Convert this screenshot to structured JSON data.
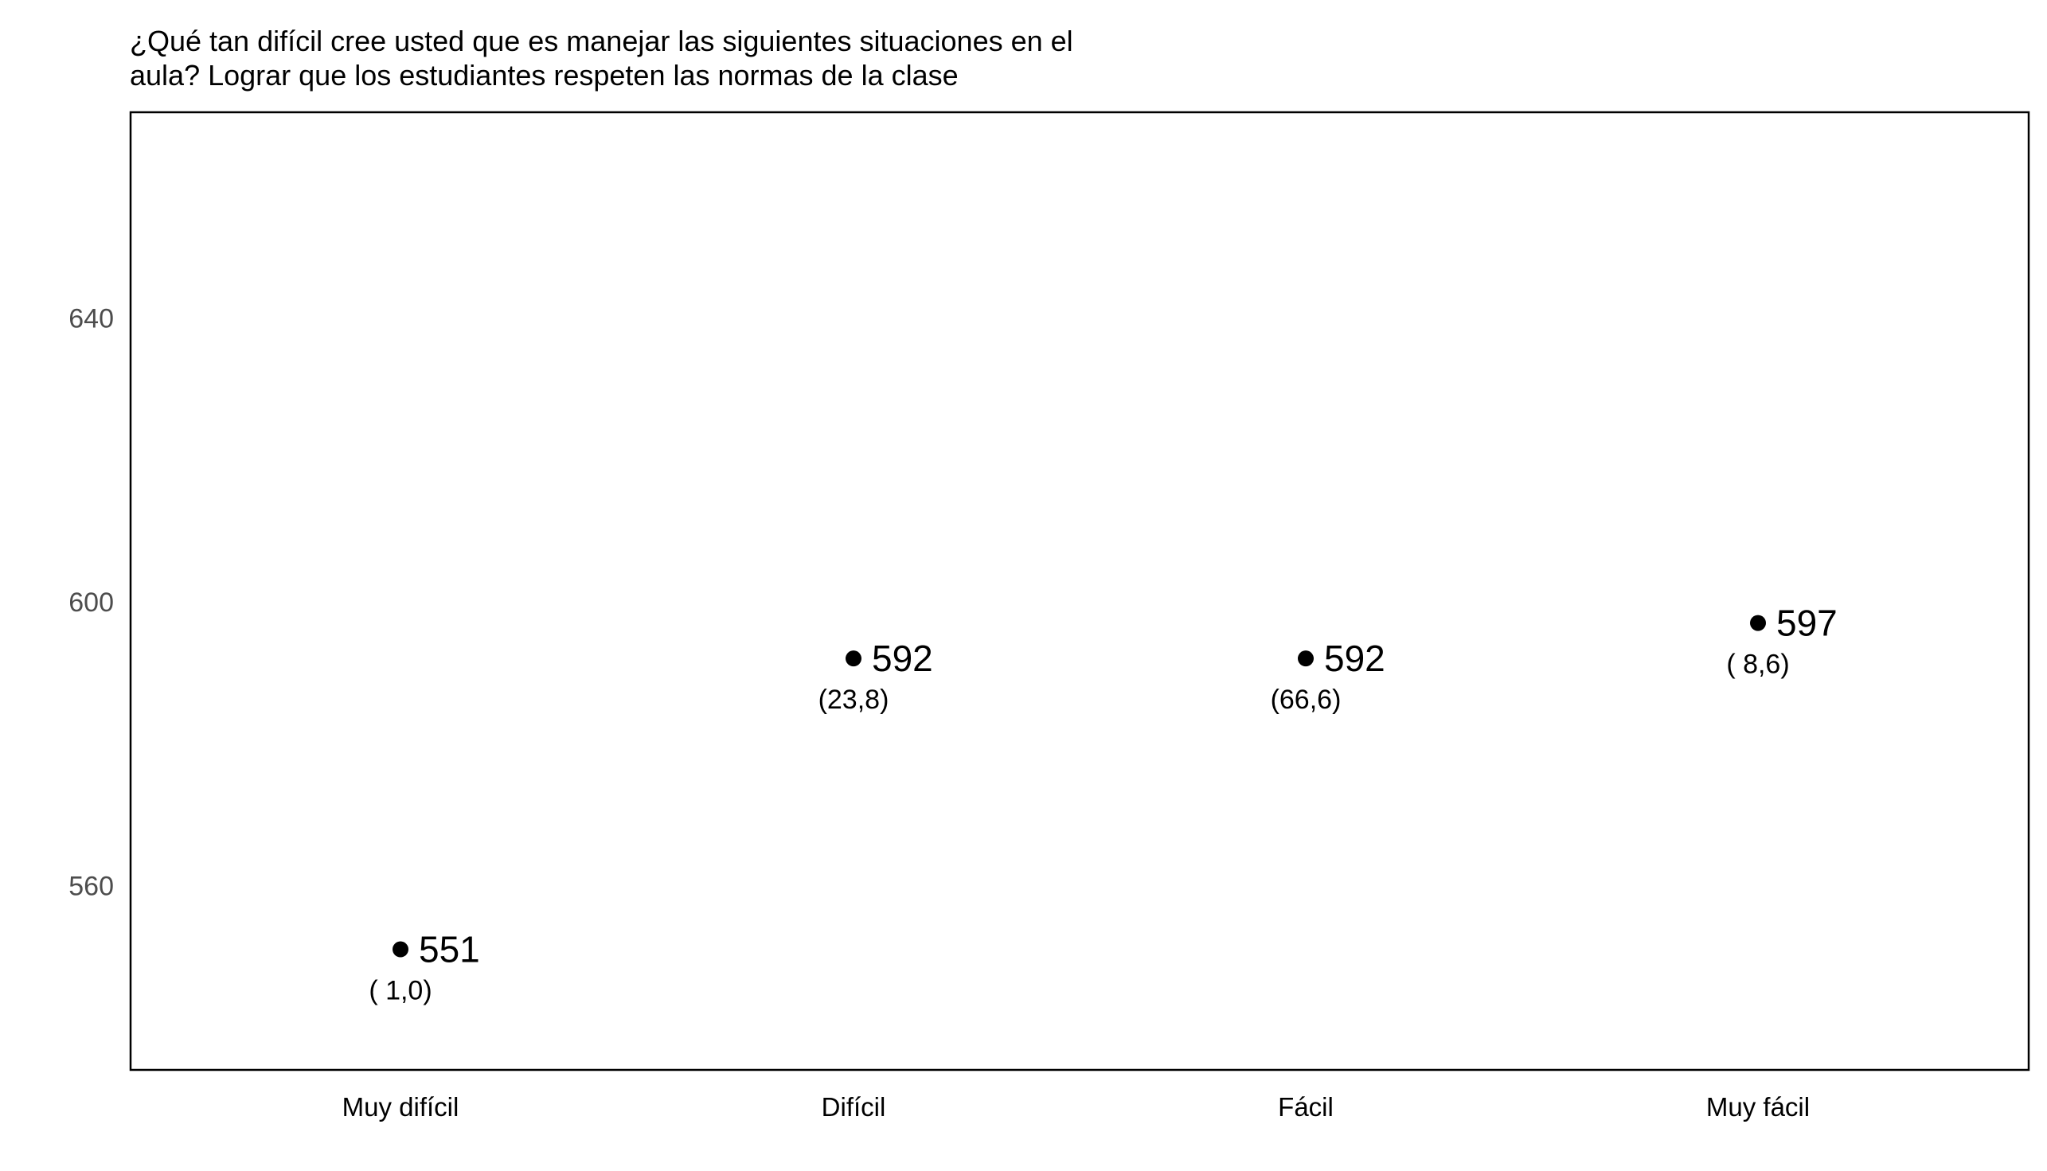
{
  "chart_data": {
    "type": "scatter",
    "title_lines": [
      "¿Qué tan difícil cree usted que es manejar las siguientes situaciones en el",
      "aula? Lograr que los estudiantes respeten las normas de la clase"
    ],
    "xlabel": "",
    "ylabel": "",
    "categories": [
      "Muy difícil",
      "Difícil",
      "Fácil",
      "Muy fácil"
    ],
    "values": [
      551,
      592,
      592,
      597
    ],
    "value_labels": [
      "551",
      "592",
      "592",
      "597"
    ],
    "percent_labels": [
      "( 1,0)",
      "(23,8)",
      "(66,6)",
      "( 8,6)"
    ],
    "yticks": [
      560,
      600,
      640
    ],
    "ytick_labels": [
      "560",
      "600",
      "640"
    ],
    "ylim": [
      534,
      669
    ],
    "grid": false,
    "legend": "none",
    "colors": {
      "point": "#000000",
      "axis_text": "#4d4d4d",
      "panel_border": "#000000",
      "background": "#ffffff"
    }
  }
}
